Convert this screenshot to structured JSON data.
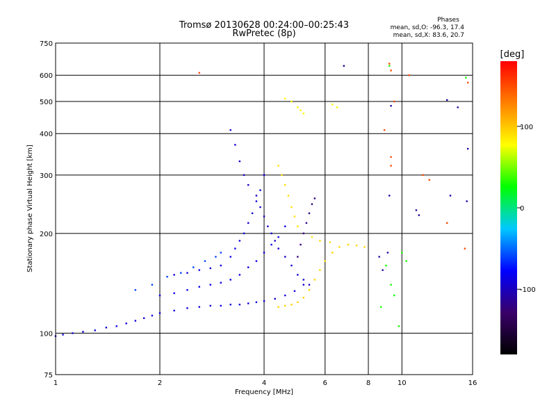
{
  "chart_data": {
    "type": "scatter",
    "title": "Tromsø 20130628 00:24:00–00:25:43",
    "subtitle": "RwPretec (8p)",
    "xlabel": "Frequency [MHz]",
    "ylabel": "Stationary phase Virtual Height [km]",
    "x_scale": "log",
    "y_scale": "log",
    "xlim": [
      1,
      16
    ],
    "ylim": [
      75,
      750
    ],
    "x_ticks": [
      1,
      2,
      4,
      6,
      8,
      10,
      16
    ],
    "y_ticks": [
      75,
      100,
      200,
      300,
      400,
      500,
      600,
      750
    ],
    "grid": true,
    "stats": {
      "title": "Phases",
      "line1": "mean, sd,O: -96.3, 17.4",
      "line2": "mean, sd,X:  83.6, 20.7"
    },
    "colorbar": {
      "label": "[deg]",
      "ticks": [
        100,
        0,
        -100
      ],
      "range": [
        -180,
        180
      ],
      "colors": [
        "#000000",
        "#3a006a",
        "#0000ff",
        "#00c8ff",
        "#00ff00",
        "#ffff00",
        "#ff8000",
        "#ff0000"
      ]
    },
    "series": [
      {
        "phase": -90,
        "points": [
          [
            1.0,
            98
          ],
          [
            1.05,
            99
          ],
          [
            1.12,
            100
          ],
          [
            1.2,
            101
          ],
          [
            1.3,
            102
          ],
          [
            1.4,
            104
          ],
          [
            1.5,
            105
          ],
          [
            1.6,
            107
          ],
          [
            1.7,
            109
          ],
          [
            1.8,
            111
          ],
          [
            1.9,
            113
          ],
          [
            2.0,
            115
          ],
          [
            2.2,
            117
          ],
          [
            2.4,
            119
          ],
          [
            2.6,
            120
          ],
          [
            2.8,
            121
          ],
          [
            3.0,
            121
          ],
          [
            3.2,
            122
          ],
          [
            3.4,
            122
          ],
          [
            3.6,
            123
          ],
          [
            3.8,
            124
          ],
          [
            4.0,
            125
          ],
          [
            4.3,
            127
          ],
          [
            4.6,
            130
          ],
          [
            4.9,
            134
          ],
          [
            5.2,
            140
          ]
        ]
      },
      {
        "phase": -95,
        "points": [
          [
            3.2,
            410
          ],
          [
            3.3,
            370
          ],
          [
            3.4,
            330
          ],
          [
            3.5,
            300
          ],
          [
            3.6,
            280
          ],
          [
            3.8,
            260
          ],
          [
            3.9,
            240
          ],
          [
            4.0,
            225
          ],
          [
            4.1,
            210
          ],
          [
            4.2,
            200
          ],
          [
            4.3,
            190
          ],
          [
            4.4,
            180
          ],
          [
            4.6,
            170
          ],
          [
            4.8,
            160
          ],
          [
            5.0,
            150
          ],
          [
            5.2,
            145
          ],
          [
            5.4,
            140
          ]
        ]
      },
      {
        "phase": -90,
        "points": [
          [
            2.2,
            150
          ],
          [
            2.4,
            152
          ],
          [
            2.6,
            155
          ],
          [
            2.8,
            157
          ],
          [
            3.0,
            160
          ],
          [
            3.2,
            170
          ],
          [
            3.3,
            180
          ],
          [
            3.4,
            190
          ],
          [
            3.5,
            200
          ],
          [
            3.6,
            215
          ],
          [
            3.7,
            230
          ],
          [
            3.8,
            250
          ],
          [
            3.9,
            270
          ],
          [
            4.0,
            300
          ]
        ]
      },
      {
        "phase": -85,
        "points": [
          [
            2.0,
            130
          ],
          [
            2.2,
            132
          ],
          [
            2.4,
            135
          ],
          [
            2.6,
            138
          ],
          [
            2.8,
            140
          ],
          [
            3.0,
            142
          ],
          [
            3.2,
            145
          ],
          [
            3.4,
            150
          ],
          [
            3.6,
            158
          ],
          [
            3.8,
            165
          ],
          [
            4.0,
            175
          ],
          [
            4.2,
            185
          ],
          [
            4.4,
            195
          ],
          [
            4.6,
            210
          ]
        ]
      },
      {
        "phase": -60,
        "points": [
          [
            1.7,
            135
          ],
          [
            1.9,
            140
          ],
          [
            2.1,
            148
          ],
          [
            2.3,
            152
          ],
          [
            2.5,
            158
          ],
          [
            2.7,
            165
          ],
          [
            2.9,
            170
          ],
          [
            3.0,
            175
          ]
        ]
      },
      {
        "phase": 95,
        "points": [
          [
            4.4,
            120
          ],
          [
            4.6,
            121
          ],
          [
            4.8,
            122
          ],
          [
            5.0,
            124
          ],
          [
            5.2,
            128
          ],
          [
            5.4,
            135
          ],
          [
            5.6,
            145
          ],
          [
            5.8,
            155
          ],
          [
            6.0,
            165
          ],
          [
            6.3,
            175
          ],
          [
            6.6,
            182
          ],
          [
            7.0,
            185
          ],
          [
            7.4,
            184
          ],
          [
            7.8,
            182
          ]
        ]
      },
      {
        "phase": 90,
        "points": [
          [
            4.4,
            320
          ],
          [
            4.5,
            300
          ],
          [
            4.6,
            280
          ],
          [
            4.7,
            260
          ],
          [
            4.8,
            240
          ],
          [
            4.9,
            225
          ],
          [
            5.0,
            210
          ],
          [
            5.2,
            200
          ],
          [
            5.5,
            195
          ],
          [
            5.8,
            190
          ],
          [
            6.2,
            188
          ]
        ]
      },
      {
        "phase": 80,
        "points": [
          [
            5.0,
            480
          ],
          [
            5.1,
            470
          ],
          [
            5.2,
            460
          ],
          [
            6.3,
            490
          ],
          [
            6.5,
            480
          ],
          [
            4.6,
            510
          ],
          [
            4.8,
            500
          ]
        ]
      },
      {
        "phase": -120,
        "points": [
          [
            5.0,
            170
          ],
          [
            5.1,
            185
          ],
          [
            5.2,
            200
          ],
          [
            5.3,
            215
          ],
          [
            5.4,
            230
          ],
          [
            5.5,
            245
          ],
          [
            5.6,
            255
          ]
        ]
      },
      {
        "phase": 150,
        "points": [
          [
            2.6,
            610
          ],
          [
            9.2,
            650
          ],
          [
            9.3,
            620
          ],
          [
            8.9,
            410
          ],
          [
            9.3,
            340
          ],
          [
            9.3,
            320
          ],
          [
            11.5,
            300
          ],
          [
            12.0,
            290
          ],
          [
            13.5,
            215
          ],
          [
            15.5,
            570
          ],
          [
            15.2,
            180
          ],
          [
            10.5,
            600
          ],
          [
            9.5,
            500
          ]
        ]
      },
      {
        "phase": 30,
        "points": [
          [
            9.2,
            640
          ],
          [
            9.0,
            160
          ],
          [
            9.3,
            140
          ],
          [
            9.5,
            130
          ],
          [
            10.0,
            175
          ],
          [
            10.3,
            165
          ],
          [
            8.7,
            120
          ],
          [
            9.8,
            105
          ],
          [
            15.3,
            590
          ],
          [
            6.8,
            640
          ]
        ]
      },
      {
        "phase": -110,
        "points": [
          [
            6.8,
            640
          ],
          [
            9.3,
            485
          ],
          [
            9.2,
            260
          ],
          [
            13.5,
            505
          ],
          [
            15.5,
            360
          ],
          [
            14.5,
            480
          ],
          [
            11.0,
            235
          ],
          [
            11.2,
            227
          ],
          [
            13.8,
            260
          ],
          [
            15.4,
            250
          ],
          [
            8.6,
            170
          ],
          [
            8.8,
            155
          ],
          [
            9.1,
            175
          ]
        ]
      }
    ]
  }
}
